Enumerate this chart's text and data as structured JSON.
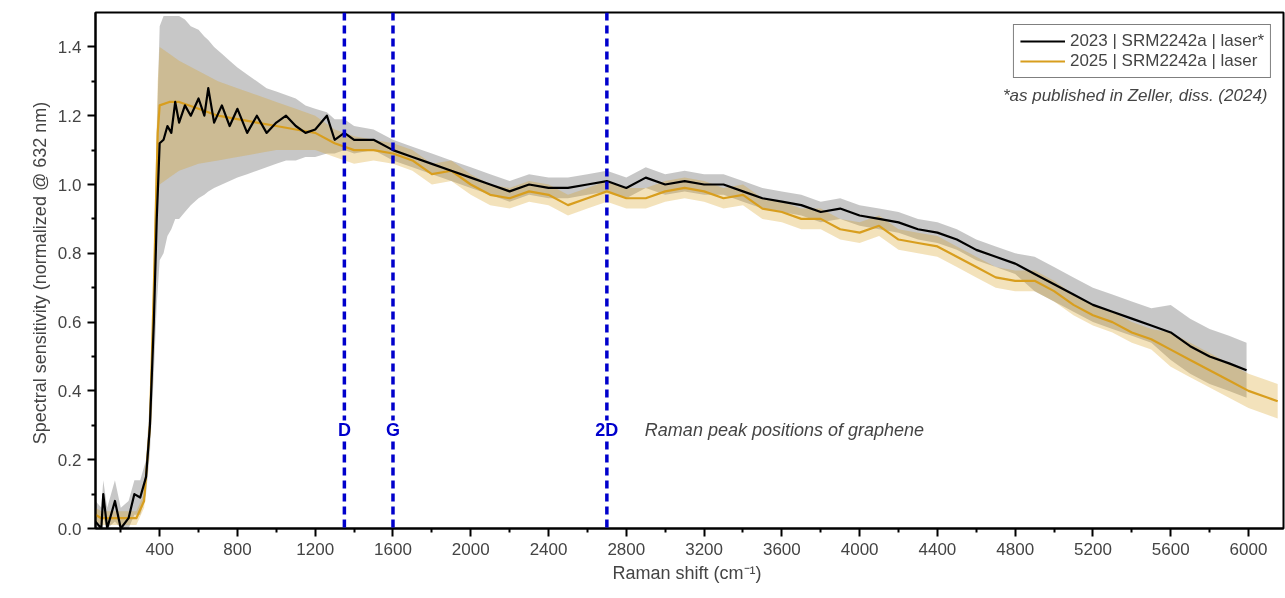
{
  "chart_data": {
    "type": "line",
    "xlabel": "Raman shift  (cm⁻¹)",
    "ylabel": "Spectral sensitivity  (normalized @ 632 nm)",
    "xlim": [
      70,
      6180
    ],
    "ylim": [
      0,
      1.5
    ],
    "xticks": [
      {
        "value": 200,
        "label": null
      },
      400,
      {
        "value": 600,
        "label": null
      },
      800,
      {
        "value": 1000,
        "label": null
      },
      1200,
      {
        "value": 1400,
        "label": null
      },
      1600,
      {
        "value": 1800,
        "label": null
      },
      2000,
      {
        "value": 2200,
        "label": null
      },
      2400,
      {
        "value": 2600,
        "label": null
      },
      2800,
      {
        "value": 3000,
        "label": null
      },
      3200,
      {
        "value": 3400,
        "label": null
      },
      3600,
      {
        "value": 3800,
        "label": null
      },
      4000,
      {
        "value": 4200,
        "label": null
      },
      4400,
      {
        "value": 4600,
        "label": null
      },
      4800,
      {
        "value": 5000,
        "label": null
      },
      5200,
      {
        "value": 5400,
        "label": null
      },
      5600,
      {
        "value": 5800,
        "label": null
      },
      6000
    ],
    "yticks": [
      {
        "value": 0,
        "label": "0.0"
      },
      {
        "value": 0.1,
        "label": null
      },
      0.2,
      {
        "value": 0.3,
        "label": null
      },
      0.4,
      {
        "value": 0.5,
        "label": null
      },
      0.6,
      {
        "value": 0.7,
        "label": null
      },
      0.8,
      {
        "value": 0.9,
        "label": null
      },
      {
        "value": 1.0,
        "label": "1.0"
      },
      {
        "value": 1.1,
        "label": null
      },
      1.2,
      {
        "value": 1.3,
        "label": null
      },
      1.4
    ],
    "grid": false,
    "legend": "top right",
    "line_style": "solid",
    "marker": "none",
    "ref_lines": [
      {
        "axis": "x",
        "value": 1350,
        "label": "D",
        "color": "#0000cc",
        "line_style": "dashed"
      },
      {
        "axis": "x",
        "value": 1600,
        "label": "G",
        "color": "#0000cc",
        "line_style": "dashed"
      },
      {
        "axis": "x",
        "value": 2700,
        "label": "2D",
        "color": "#0000cc",
        "line_style": "dashed"
      }
    ],
    "annotations": [
      "Raman peak positions of graphene",
      "*as published in Zeller, diss. (2024)"
    ],
    "series": [
      {
        "name": "2023 | SRM2242a | laser*",
        "color": "#000000",
        "x": [
          70,
          100,
          110,
          130,
          170,
          200,
          240,
          270,
          300,
          330,
          350,
          370,
          385,
          400,
          420,
          440,
          460,
          480,
          500,
          530,
          560,
          600,
          630,
          650,
          680,
          720,
          760,
          800,
          850,
          900,
          950,
          1000,
          1050,
          1100,
          1150,
          1200,
          1260,
          1300,
          1350,
          1400,
          1500,
          1600,
          1700,
          1800,
          1900,
          2000,
          2100,
          2200,
          2300,
          2400,
          2500,
          2600,
          2700,
          2800,
          2900,
          3000,
          3100,
          3200,
          3300,
          3400,
          3500,
          3600,
          3700,
          3800,
          3900,
          4000,
          4100,
          4200,
          4300,
          4400,
          4500,
          4600,
          4700,
          4800,
          4900,
          5000,
          5100,
          5200,
          5300,
          5400,
          5500,
          5600,
          5700,
          5800,
          5900,
          5990
        ],
        "values": [
          0.02,
          0.0,
          0.1,
          0.0,
          0.08,
          0.0,
          0.03,
          0.1,
          0.09,
          0.15,
          0.3,
          0.6,
          0.9,
          1.12,
          1.13,
          1.17,
          1.15,
          1.24,
          1.18,
          1.23,
          1.2,
          1.25,
          1.2,
          1.28,
          1.18,
          1.23,
          1.17,
          1.22,
          1.15,
          1.2,
          1.15,
          1.18,
          1.2,
          1.17,
          1.15,
          1.16,
          1.2,
          1.13,
          1.15,
          1.13,
          1.13,
          1.1,
          1.08,
          1.06,
          1.04,
          1.02,
          1.0,
          0.98,
          1.0,
          0.99,
          0.99,
          1.0,
          1.01,
          0.99,
          1.02,
          1.0,
          1.01,
          1.0,
          1.0,
          0.98,
          0.96,
          0.95,
          0.94,
          0.92,
          0.93,
          0.91,
          0.9,
          0.89,
          0.87,
          0.86,
          0.84,
          0.81,
          0.79,
          0.77,
          0.74,
          0.71,
          0.68,
          0.65,
          0.63,
          0.61,
          0.59,
          0.57,
          0.53,
          0.5,
          0.48,
          0.46
        ],
        "lower": [
          0,
          0,
          0.03,
          0,
          0.02,
          0,
          0,
          0.04,
          0.04,
          0.1,
          0.22,
          0.45,
          0.65,
          0.78,
          0.8,
          0.85,
          0.87,
          0.9,
          0.9,
          0.92,
          0.94,
          0.96,
          0.97,
          0.98,
          0.99,
          1.0,
          1.01,
          1.02,
          1.03,
          1.04,
          1.05,
          1.06,
          1.07,
          1.07,
          1.08,
          1.08,
          1.09,
          1.09,
          1.1,
          1.09,
          1.1,
          1.07,
          1.05,
          1.03,
          1.01,
          0.99,
          0.97,
          0.95,
          0.97,
          0.96,
          0.96,
          0.97,
          0.98,
          0.96,
          0.99,
          0.97,
          0.98,
          0.97,
          0.97,
          0.95,
          0.93,
          0.92,
          0.91,
          0.89,
          0.9,
          0.88,
          0.87,
          0.86,
          0.84,
          0.83,
          0.81,
          0.78,
          0.76,
          0.74,
          0.69,
          0.66,
          0.63,
          0.6,
          0.58,
          0.56,
          0.54,
          0.49,
          0.45,
          0.42,
          0.4,
          0.38
        ],
        "upper": [
          0.08,
          0.06,
          0.14,
          0.06,
          0.14,
          0.06,
          0.08,
          0.14,
          0.14,
          0.2,
          0.38,
          0.75,
          1.15,
          1.46,
          1.49,
          1.49,
          1.49,
          1.49,
          1.49,
          1.48,
          1.46,
          1.45,
          1.43,
          1.42,
          1.4,
          1.38,
          1.36,
          1.34,
          1.32,
          1.3,
          1.28,
          1.27,
          1.26,
          1.25,
          1.23,
          1.22,
          1.21,
          1.19,
          1.19,
          1.17,
          1.16,
          1.13,
          1.11,
          1.09,
          1.07,
          1.05,
          1.03,
          1.01,
          1.03,
          1.02,
          1.02,
          1.03,
          1.04,
          1.02,
          1.05,
          1.03,
          1.04,
          1.03,
          1.03,
          1.01,
          0.99,
          0.98,
          0.97,
          0.95,
          0.96,
          0.94,
          0.93,
          0.92,
          0.9,
          0.89,
          0.87,
          0.84,
          0.82,
          0.8,
          0.79,
          0.76,
          0.73,
          0.7,
          0.68,
          0.66,
          0.64,
          0.65,
          0.61,
          0.58,
          0.56,
          0.54
        ]
      },
      {
        "name": "2025 | SRM2242a | laser",
        "color": "#d89e1e",
        "x": [
          70,
          100,
          200,
          280,
          320,
          350,
          370,
          390,
          400,
          450,
          500,
          600,
          700,
          800,
          900,
          1000,
          1100,
          1200,
          1300,
          1400,
          1500,
          1600,
          1700,
          1800,
          1900,
          2000,
          2100,
          2200,
          2300,
          2400,
          2500,
          2600,
          2700,
          2800,
          2900,
          3000,
          3100,
          3200,
          3300,
          3400,
          3500,
          3600,
          3700,
          3800,
          3900,
          4000,
          4100,
          4200,
          4300,
          4400,
          4500,
          4600,
          4700,
          4800,
          4900,
          5000,
          5100,
          5200,
          5300,
          5400,
          5500,
          5600,
          5700,
          5800,
          5900,
          6000,
          6100,
          6150
        ],
        "values": [
          0.04,
          0.03,
          0.03,
          0.03,
          0.08,
          0.3,
          0.7,
          1.15,
          1.23,
          1.24,
          1.24,
          1.22,
          1.2,
          1.19,
          1.18,
          1.17,
          1.16,
          1.15,
          1.12,
          1.1,
          1.1,
          1.09,
          1.07,
          1.03,
          1.04,
          1.0,
          0.97,
          0.96,
          0.98,
          0.97,
          0.94,
          0.96,
          0.98,
          0.96,
          0.96,
          0.98,
          0.99,
          0.98,
          0.96,
          0.97,
          0.93,
          0.92,
          0.9,
          0.9,
          0.87,
          0.86,
          0.88,
          0.84,
          0.83,
          0.82,
          0.79,
          0.76,
          0.73,
          0.72,
          0.72,
          0.69,
          0.65,
          0.62,
          0.6,
          0.57,
          0.55,
          0.52,
          0.49,
          0.46,
          0.43,
          0.4,
          0.38,
          0.37
        ],
        "lower": [
          0.02,
          0.01,
          0.01,
          0.01,
          0.06,
          0.26,
          0.62,
          0.95,
          1.0,
          1.02,
          1.04,
          1.06,
          1.07,
          1.08,
          1.09,
          1.1,
          1.1,
          1.1,
          1.08,
          1.06,
          1.07,
          1.06,
          1.04,
          1.0,
          1.01,
          0.97,
          0.94,
          0.93,
          0.95,
          0.94,
          0.91,
          0.93,
          0.95,
          0.93,
          0.93,
          0.95,
          0.96,
          0.95,
          0.93,
          0.94,
          0.9,
          0.89,
          0.87,
          0.87,
          0.84,
          0.83,
          0.85,
          0.81,
          0.8,
          0.79,
          0.76,
          0.73,
          0.7,
          0.69,
          0.69,
          0.66,
          0.62,
          0.59,
          0.57,
          0.54,
          0.52,
          0.47,
          0.44,
          0.41,
          0.38,
          0.35,
          0.33,
          0.32
        ],
        "upper": [
          0.06,
          0.05,
          0.05,
          0.05,
          0.1,
          0.34,
          0.78,
          1.3,
          1.4,
          1.38,
          1.36,
          1.33,
          1.3,
          1.28,
          1.26,
          1.24,
          1.22,
          1.2,
          1.16,
          1.14,
          1.13,
          1.12,
          1.1,
          1.06,
          1.07,
          1.03,
          1.0,
          0.99,
          1.01,
          1.0,
          0.97,
          0.99,
          1.01,
          0.99,
          0.99,
          1.01,
          1.02,
          1.01,
          0.99,
          1.0,
          0.96,
          0.95,
          0.93,
          0.93,
          0.9,
          0.89,
          0.91,
          0.87,
          0.86,
          0.85,
          0.82,
          0.79,
          0.76,
          0.75,
          0.75,
          0.72,
          0.68,
          0.65,
          0.63,
          0.6,
          0.58,
          0.57,
          0.54,
          0.51,
          0.48,
          0.45,
          0.43,
          0.42
        ]
      }
    ]
  }
}
